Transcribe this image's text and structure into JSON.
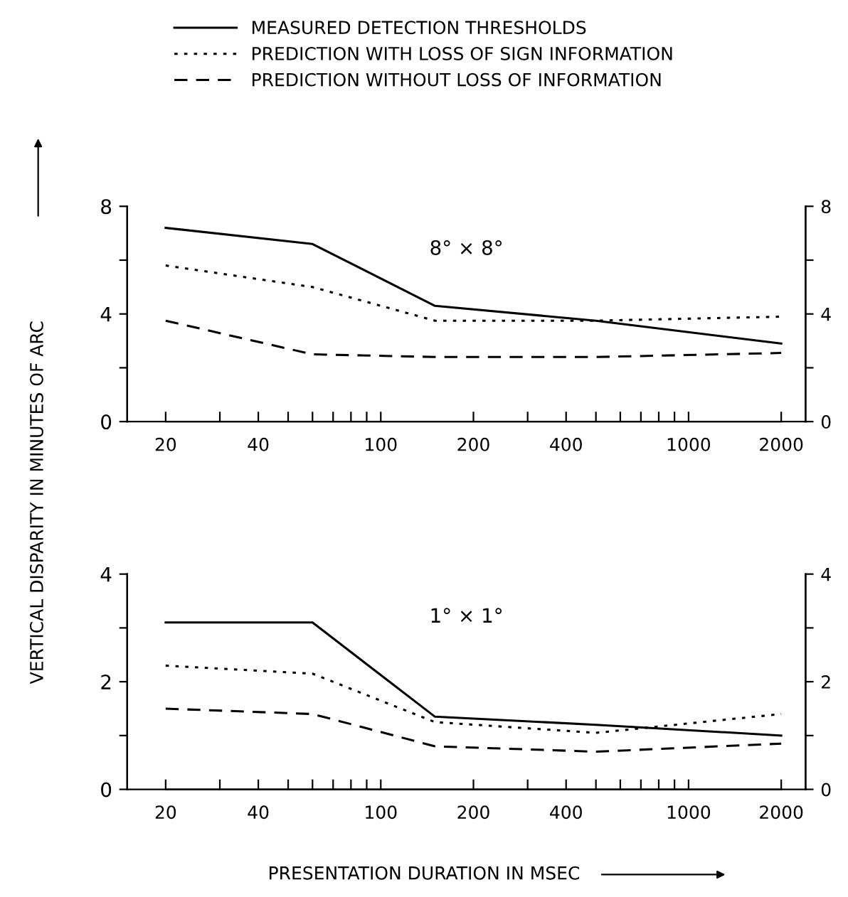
{
  "chart_data": [
    {
      "type": "line",
      "ylabel": "VERTICAL DISPARITY IN MINUTES OF ARC",
      "legend": "top",
      "log": "x",
      "annotations": [
        "8° × 8°"
      ],
      "x": [
        20,
        60,
        150,
        500,
        2000
      ],
      "xlim": [
        15,
        2400
      ],
      "xticks": [
        20,
        40,
        100,
        200,
        400,
        1000,
        2000,
        {
          "value": 30,
          "label": null
        },
        {
          "value": 50,
          "label": null
        },
        {
          "value": 60,
          "label": null
        },
        {
          "value": 70,
          "label": null
        },
        {
          "value": 80,
          "label": null
        },
        {
          "value": 90,
          "label": null
        },
        {
          "value": 300,
          "label": null
        },
        {
          "value": 500,
          "label": null
        },
        {
          "value": 600,
          "label": null
        },
        {
          "value": 700,
          "label": null
        },
        {
          "value": 800,
          "label": null
        },
        {
          "value": 900,
          "label": null
        }
      ],
      "ylim": [
        0,
        8
      ],
      "yticks": [
        0,
        {
          "value": 2,
          "label": null
        },
        4,
        {
          "value": 6,
          "label": null
        },
        8
      ],
      "y2lim": [
        0,
        8
      ],
      "y2ticks": [
        0,
        {
          "value": 2,
          "label": null
        },
        4,
        {
          "value": 6,
          "label": null
        },
        8
      ],
      "series": [
        {
          "name": "MEASURED DETECTION THRESHOLDS",
          "color": "#000000",
          "line_style": "solid",
          "values": [
            7.2,
            6.6,
            4.3,
            3.75,
            2.9
          ]
        },
        {
          "name": "PREDICTION WITH LOSS OF SIGN INFORMATION",
          "color": "#000000",
          "line_style": "dotted",
          "values": [
            5.8,
            5.0,
            3.75,
            3.75,
            3.9
          ]
        },
        {
          "name": "PREDICTION WITHOUT LOSS OF INFORMATION",
          "color": "#000000",
          "line_style": "dashed",
          "values": [
            3.75,
            2.5,
            2.4,
            2.4,
            2.55
          ]
        }
      ]
    },
    {
      "type": "line",
      "xlabel": "PRESENTATION DURATION IN MSEC",
      "log": "x",
      "annotations": [
        "1° × 1°"
      ],
      "x": [
        20,
        60,
        150,
        500,
        2000
      ],
      "xlim": [
        15,
        2400
      ],
      "xticks": [
        20,
        40,
        100,
        200,
        400,
        1000,
        2000,
        {
          "value": 30,
          "label": null
        },
        {
          "value": 50,
          "label": null
        },
        {
          "value": 60,
          "label": null
        },
        {
          "value": 70,
          "label": null
        },
        {
          "value": 80,
          "label": null
        },
        {
          "value": 90,
          "label": null
        },
        {
          "value": 300,
          "label": null
        },
        {
          "value": 500,
          "label": null
        },
        {
          "value": 600,
          "label": null
        },
        {
          "value": 700,
          "label": null
        },
        {
          "value": 800,
          "label": null
        },
        {
          "value": 900,
          "label": null
        }
      ],
      "ylim": [
        0,
        4
      ],
      "yticks": [
        0,
        {
          "value": 1,
          "label": null
        },
        2,
        {
          "value": 3,
          "label": null
        },
        4
      ],
      "y2lim": [
        0,
        4
      ],
      "y2ticks": [
        0,
        {
          "value": 1,
          "label": null
        },
        2,
        {
          "value": 3,
          "label": null
        },
        4
      ],
      "series": [
        {
          "color": "#000000",
          "line_style": "solid",
          "values": [
            3.1,
            3.1,
            1.35,
            1.2,
            1.0
          ]
        },
        {
          "color": "#000000",
          "line_style": "dotted",
          "values": [
            2.3,
            2.15,
            1.25,
            1.05,
            1.4
          ]
        },
        {
          "color": "#000000",
          "line_style": "dashed",
          "values": [
            1.5,
            1.4,
            0.8,
            0.7,
            0.85
          ]
        }
      ]
    }
  ]
}
